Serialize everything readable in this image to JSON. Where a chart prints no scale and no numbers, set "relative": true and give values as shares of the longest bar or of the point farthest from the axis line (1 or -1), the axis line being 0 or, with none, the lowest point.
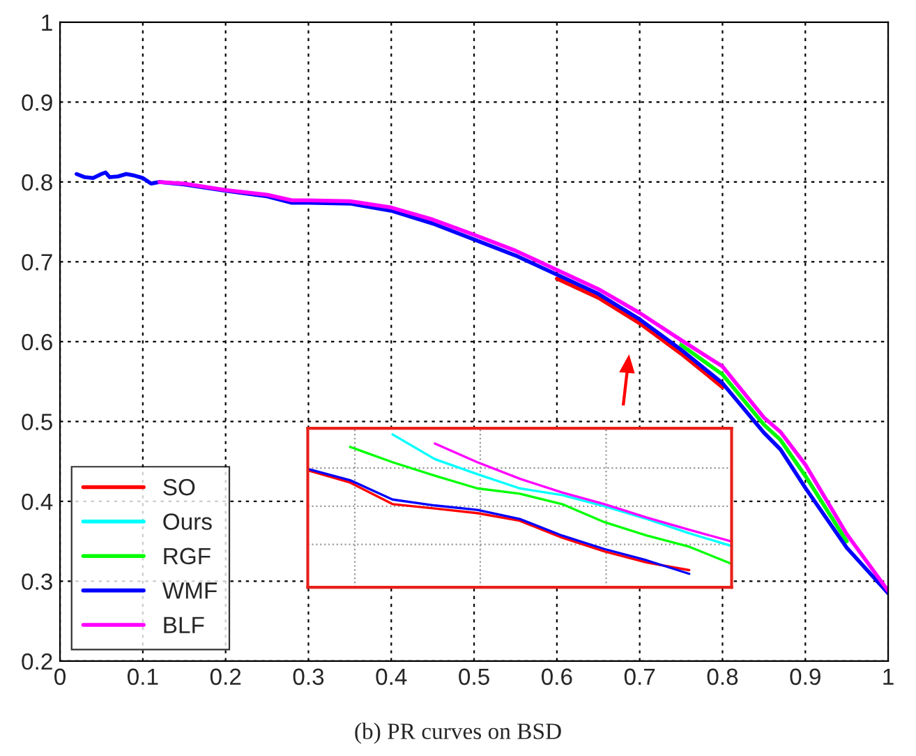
{
  "chart_data": [
    {
      "type": "line",
      "xlim": [
        0,
        1
      ],
      "ylim": [
        0.2,
        1
      ],
      "xticks": [
        0,
        0.1,
        0.2,
        0.3,
        0.4,
        0.5,
        0.6,
        0.7,
        0.8,
        0.9,
        1
      ],
      "yticks": [
        0.2,
        0.3,
        0.4,
        0.5,
        0.6,
        0.7,
        0.8,
        0.9,
        1
      ],
      "grid": true,
      "legend": "bottom left",
      "line_style": "solid",
      "marker": "none",
      "annotations": [
        "(b) PR curves on BSD"
      ],
      "x": [
        0.02,
        0.03,
        0.04,
        0.05,
        0.055,
        0.06,
        0.07,
        0.08,
        0.09,
        0.1,
        0.11,
        0.12,
        0.15,
        0.2,
        0.25,
        0.28,
        0.3,
        0.35,
        0.4,
        0.45,
        0.5,
        0.55,
        0.6,
        0.65,
        0.7,
        0.75,
        0.8,
        0.85,
        0.87,
        0.9,
        0.95,
        1.0
      ],
      "series": [
        {
          "name": "SO",
          "color": "#ff0000",
          "values": [
            null,
            null,
            null,
            null,
            null,
            null,
            null,
            null,
            null,
            null,
            null,
            null,
            null,
            null,
            null,
            null,
            null,
            null,
            null,
            null,
            null,
            null,
            0.679,
            0.655,
            0.623,
            0.585,
            0.543,
            null,
            null,
            null,
            null,
            null
          ]
        },
        {
          "name": "Ours",
          "color": "#00ffff",
          "values": [
            null,
            null,
            null,
            null,
            null,
            null,
            null,
            null,
            null,
            null,
            null,
            null,
            null,
            null,
            null,
            null,
            null,
            null,
            null,
            null,
            null,
            null,
            null,
            null,
            null,
            null,
            null,
            null,
            null,
            null,
            null,
            null
          ]
        },
        {
          "name": "RGF",
          "color": "#00ff00",
          "values": [
            null,
            null,
            null,
            null,
            null,
            null,
            null,
            null,
            null,
            null,
            null,
            null,
            null,
            null,
            null,
            null,
            null,
            null,
            null,
            null,
            null,
            null,
            null,
            null,
            null,
            0.596,
            0.559,
            0.496,
            0.477,
            0.432,
            0.35,
            null
          ]
        },
        {
          "name": "WMF",
          "color": "#0000ff",
          "values": [
            0.81,
            0.806,
            0.805,
            0.81,
            0.812,
            0.806,
            0.807,
            0.81,
            0.808,
            0.805,
            0.798,
            0.8,
            0.797,
            0.789,
            0.782,
            0.774,
            0.774,
            0.773,
            0.764,
            0.748,
            0.728,
            0.708,
            0.684,
            0.66,
            0.628,
            0.59,
            0.548,
            0.486,
            0.465,
            0.417,
            0.342,
            0.285
          ]
        },
        {
          "name": "BLF",
          "color": "#ff00ff",
          "values": [
            null,
            null,
            null,
            null,
            null,
            null,
            null,
            null,
            null,
            null,
            null,
            0.8,
            0.798,
            0.79,
            0.784,
            0.777,
            0.777,
            0.776,
            0.768,
            0.753,
            0.734,
            0.714,
            0.69,
            0.666,
            0.636,
            0.602,
            0.569,
            0.505,
            0.487,
            0.446,
            0.359,
            0.288
          ]
        }
      ]
    },
    {
      "type": "line",
      "relative": true,
      "grid": true,
      "tick_labels": false,
      "line_style": "solid",
      "marker": "none",
      "categories": [
        null,
        null,
        null,
        null,
        null,
        null,
        null,
        null,
        null,
        null,
        null
      ],
      "series": [
        {
          "color": "#ff0000",
          "values": [
            0.765,
            0.685,
            0.544,
            0.515,
            0.485,
            0.435,
            0.324,
            0.235,
            0.162,
            0.112,
            null
          ]
        },
        {
          "color": "#00ffff",
          "values": [
            null,
            null,
            1.0,
            0.838,
            0.74,
            0.647,
            0.603,
            0.53,
            0.447,
            0.353,
            0.27
          ]
        },
        {
          "color": "#00ff00",
          "values": [
            null,
            0.918,
            0.818,
            0.73,
            0.647,
            0.612,
            0.544,
            0.426,
            0.338,
            0.265,
            0.153
          ]
        },
        {
          "color": "#0000ff",
          "values": [
            0.774,
            0.7,
            0.574,
            0.535,
            0.506,
            0.447,
            0.338,
            0.25,
            0.176,
            0.088,
            null
          ]
        },
        {
          "color": "#ff00ff",
          "values": [
            null,
            null,
            null,
            0.94,
            0.818,
            0.71,
            0.62,
            0.544,
            0.456,
            0.376,
            0.3
          ]
        }
      ]
    }
  ]
}
